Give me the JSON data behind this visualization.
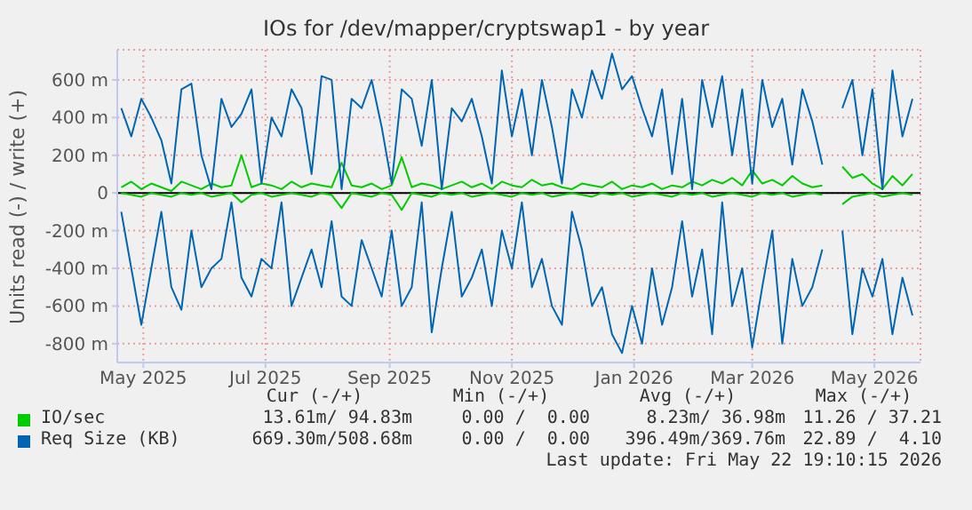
{
  "chart_data": {
    "type": "line",
    "title": "IOs for /dev/mapper/cryptswap1 - by year",
    "ylabel": "Units read (-) / write (+)",
    "x": [
      "2025-04-20",
      "2025-04-25",
      "2025-04-30",
      "2025-05-05",
      "2025-05-10",
      "2025-05-15",
      "2025-05-20",
      "2025-05-25",
      "2025-05-30",
      "2025-06-04",
      "2025-06-09",
      "2025-06-14",
      "2025-06-19",
      "2025-06-24",
      "2025-06-29",
      "2025-07-04",
      "2025-07-09",
      "2025-07-14",
      "2025-07-19",
      "2025-07-24",
      "2025-07-29",
      "2025-08-03",
      "2025-08-08",
      "2025-08-13",
      "2025-08-18",
      "2025-08-23",
      "2025-08-28",
      "2025-09-02",
      "2025-09-07",
      "2025-09-12",
      "2025-09-17",
      "2025-09-22",
      "2025-09-27",
      "2025-10-02",
      "2025-10-07",
      "2025-10-12",
      "2025-10-17",
      "2025-10-22",
      "2025-10-27",
      "2025-11-01",
      "2025-11-06",
      "2025-11-11",
      "2025-11-16",
      "2025-11-21",
      "2025-11-26",
      "2025-12-01",
      "2025-12-06",
      "2025-12-11",
      "2025-12-16",
      "2025-12-21",
      "2025-12-26",
      "2025-12-31",
      "2026-01-05",
      "2026-01-10",
      "2026-01-15",
      "2026-01-20",
      "2026-01-25",
      "2026-01-30",
      "2026-02-04",
      "2026-02-09",
      "2026-02-14",
      "2026-02-19",
      "2026-02-24",
      "2026-03-01",
      "2026-03-06",
      "2026-03-11",
      "2026-03-16",
      "2026-03-21",
      "2026-03-26",
      "2026-03-31",
      "2026-04-05",
      "2026-04-10",
      "2026-04-15",
      "2026-04-20",
      "2026-04-25",
      "2026-04-30",
      "2026-05-05",
      "2026-05-10",
      "2026-05-15",
      "2026-05-20"
    ],
    "series": [
      {
        "name": "IO/sec",
        "color": "#00cc00",
        "values": [
          30,
          60,
          20,
          50,
          30,
          10,
          60,
          40,
          20,
          50,
          30,
          40,
          200,
          30,
          50,
          40,
          20,
          60,
          30,
          50,
          40,
          30,
          160,
          40,
          30,
          50,
          20,
          40,
          190,
          30,
          50,
          40,
          20,
          40,
          60,
          30,
          50,
          20,
          60,
          40,
          30,
          70,
          40,
          50,
          30,
          20,
          50,
          40,
          30,
          60,
          20,
          40,
          30,
          50,
          20,
          40,
          30,
          60,
          40,
          70,
          50,
          80,
          40,
          120,
          50,
          70,
          40,
          90,
          50,
          30,
          40,
          null,
          140,
          80,
          100,
          50,
          20,
          90,
          40,
          100
        ]
      },
      {
        "color": "#00cc00",
        "values": [
          0,
          -10,
          -20,
          0,
          -10,
          -20,
          0,
          -10,
          0,
          -20,
          -10,
          0,
          -50,
          -10,
          0,
          -20,
          -10,
          0,
          -10,
          -20,
          0,
          -10,
          -80,
          0,
          -10,
          -20,
          0,
          -10,
          -90,
          0,
          -10,
          -20,
          0,
          -10,
          0,
          -20,
          -10,
          0,
          -10,
          -20,
          0,
          -10,
          0,
          -20,
          -10,
          0,
          -10,
          -20,
          0,
          -10,
          0,
          -20,
          -10,
          0,
          -10,
          -20,
          0,
          -10,
          0,
          -20,
          -10,
          0,
          -10,
          -20,
          0,
          -10,
          0,
          -20,
          -10,
          0,
          -10,
          null,
          -60,
          -20,
          -10,
          0,
          -20,
          -10,
          0,
          -10
        ]
      },
      {
        "name": "Req Size (KB)",
        "color": "#0066b3",
        "values": [
          450,
          300,
          500,
          400,
          280,
          50,
          550,
          580,
          200,
          20,
          500,
          350,
          420,
          550,
          50,
          400,
          300,
          550,
          450,
          100,
          620,
          600,
          20,
          500,
          450,
          600,
          350,
          50,
          550,
          500,
          250,
          600,
          20,
          450,
          380,
          500,
          300,
          50,
          650,
          300,
          550,
          200,
          600,
          350,
          50,
          550,
          400,
          650,
          500,
          740,
          550,
          620,
          450,
          300,
          550,
          100,
          500,
          20,
          600,
          350,
          620,
          200,
          550,
          50,
          600,
          350,
          500,
          150,
          550,
          380,
          150,
          null,
          450,
          600,
          200,
          550,
          20,
          650,
          300,
          500
        ]
      },
      {
        "color": "#0066b3",
        "values": [
          -100,
          -400,
          -700,
          -400,
          -100,
          -500,
          -620,
          -200,
          -500,
          -400,
          -350,
          -50,
          -450,
          -550,
          -350,
          -400,
          -50,
          -600,
          -450,
          -300,
          -500,
          -150,
          -550,
          -600,
          -250,
          -400,
          -550,
          -200,
          -600,
          -500,
          -50,
          -740,
          -400,
          -100,
          -550,
          -450,
          -300,
          -600,
          -200,
          -400,
          -50,
          -500,
          -350,
          -600,
          -700,
          -100,
          -300,
          -600,
          -500,
          -750,
          -850,
          -600,
          -800,
          -400,
          -700,
          -500,
          -150,
          -550,
          -300,
          -750,
          -50,
          -600,
          -400,
          -820,
          -500,
          -200,
          -800,
          -350,
          -600,
          -500,
          -300,
          null,
          -200,
          -750,
          -400,
          -550,
          -350,
          -750,
          -450,
          -650
        ]
      }
    ],
    "xlim": [
      "2025-04-18",
      "2026-05-24"
    ],
    "xticks": [
      {
        "value": "2025-05",
        "label": "May 2025"
      },
      {
        "value": "2025-07",
        "label": "Jul 2025"
      },
      {
        "value": "2025-09",
        "label": "Sep 2025"
      },
      {
        "value": "2025-11",
        "label": "Nov 2025"
      },
      {
        "value": "2026-01",
        "label": "Jan 2026"
      },
      {
        "value": "2026-03",
        "label": "Mar 2026"
      },
      {
        "value": "2026-05",
        "label": "May 2026"
      }
    ],
    "ylim": [
      -900,
      760
    ],
    "yticks": [
      {
        "value": -800,
        "label": "-800 m"
      },
      {
        "value": -600,
        "label": "-600 m"
      },
      {
        "value": -400,
        "label": "-400 m"
      },
      {
        "value": -200,
        "label": "-200 m"
      },
      0,
      {
        "value": 200,
        "label": "200 m"
      },
      {
        "value": 400,
        "label": "400 m"
      },
      {
        "value": 600,
        "label": "600 m"
      }
    ],
    "ref_lines": [
      {
        "axis": "y",
        "value": 0,
        "color": "#000000"
      }
    ],
    "grid": true,
    "legend": "bottom",
    "annotations": [
      "Cur (-/+)",
      "Min (-/+)",
      "Avg (-/+)",
      "Max (-/+)",
      "13.61m/ 94.83m",
      "0.00 /  0.00",
      "8.23m/ 36.98m",
      "11.26 / 37.21",
      "669.30m/508.68m",
      "0.00 /  0.00",
      "396.49m/369.76m",
      "22.89 /  4.10",
      "Last update: Fri May 22 19:10:15 2026"
    ]
  }
}
